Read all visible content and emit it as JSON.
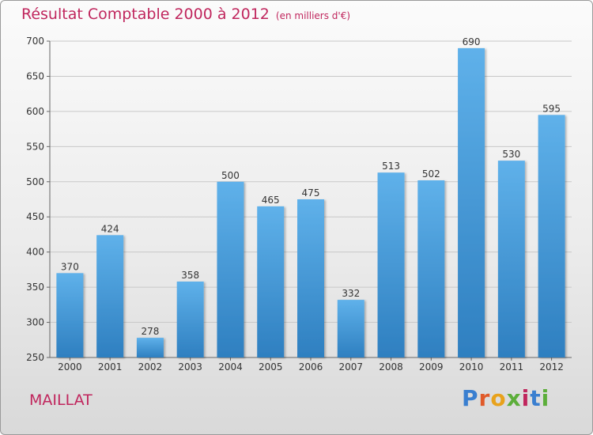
{
  "chart_data": {
    "type": "bar",
    "title": "Résultat Comptable 2000 à 2012",
    "subtitle": "(en milliers d'€)",
    "xlabel": "",
    "ylabel": "",
    "categories": [
      "2000",
      "2001",
      "2002",
      "2003",
      "2004",
      "2005",
      "2006",
      "2007",
      "2008",
      "2009",
      "2010",
      "2011",
      "2012"
    ],
    "values": [
      370,
      424,
      278,
      358,
      500,
      465,
      475,
      332,
      513,
      502,
      690,
      530,
      595
    ],
    "ylim": [
      250,
      700
    ],
    "yticks": [
      250,
      300,
      350,
      400,
      450,
      500,
      550,
      600,
      650,
      700
    ],
    "grid": true,
    "bar_color": "#4da3e0"
  },
  "commune": "MAILLAT",
  "logo": {
    "letters": [
      "P",
      "r",
      "o",
      "x",
      "i",
      "t",
      "i"
    ],
    "colors": [
      "#3a7fd0",
      "#e05a2a",
      "#e8a21c",
      "#5cae3a",
      "#c0265d",
      "#3a7fd0",
      "#5cae3a"
    ]
  }
}
